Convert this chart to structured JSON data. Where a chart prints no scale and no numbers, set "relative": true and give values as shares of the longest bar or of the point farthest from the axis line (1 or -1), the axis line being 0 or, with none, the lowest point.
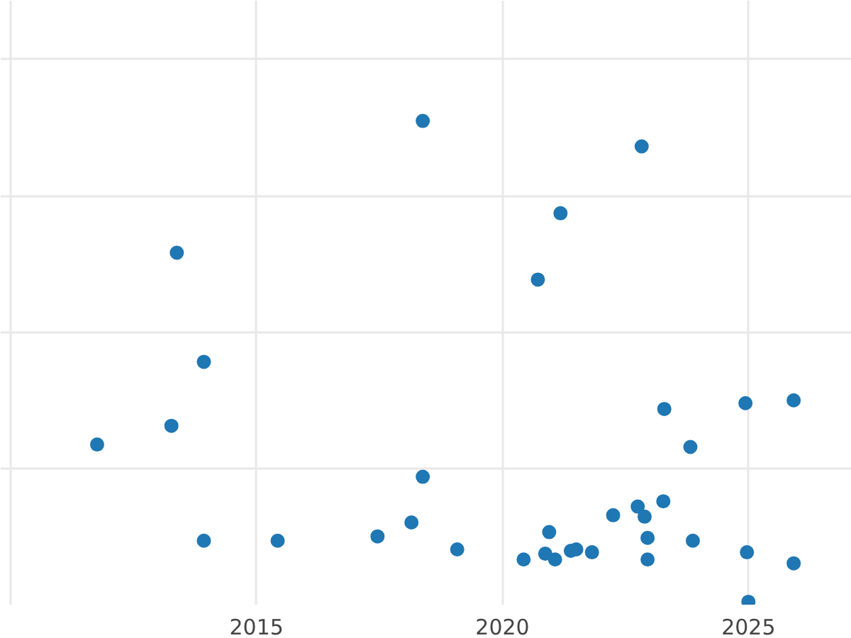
{
  "chart_data": {
    "type": "scatter",
    "relative": true,
    "marker": "circle",
    "grid": true,
    "x": [
      2011.76,
      2013.27,
      2013.38,
      2013.93,
      2013.93,
      2015.43,
      2017.46,
      2018.15,
      2018.38,
      2018.38,
      2019.08,
      2020.43,
      2020.72,
      2020.87,
      2020.95,
      2021.07,
      2021.18,
      2021.39,
      2021.5,
      2021.82,
      2022.25,
      2022.75,
      2022.83,
      2022.89,
      2022.95,
      2022.95,
      2023.27,
      2023.29,
      2023.82,
      2023.87,
      2024.94,
      2024.97,
      2025.0,
      2025.92,
      2025.92
    ],
    "series": [
      {
        "color": "#1f77b4",
        "values": [
          0.327,
          0.366,
          0.726,
          0.499,
          0.127,
          0.127,
          0.136,
          0.165,
          1.0,
          0.26,
          0.109,
          0.088,
          0.67,
          0.1,
          0.145,
          0.088,
          0.808,
          0.106,
          0.109,
          0.103,
          0.18,
          0.198,
          0.947,
          0.177,
          0.133,
          0.088,
          0.209,
          0.401,
          0.322,
          0.127,
          0.413,
          0.103,
          0.0,
          0.419,
          0.08
        ]
      }
    ],
    "xlim": [
      2009.8,
      2027.1
    ],
    "xticks": [
      {
        "value": 2010,
        "label": null
      },
      2015,
      2020,
      2025
    ],
    "tick_labels": "x"
  }
}
